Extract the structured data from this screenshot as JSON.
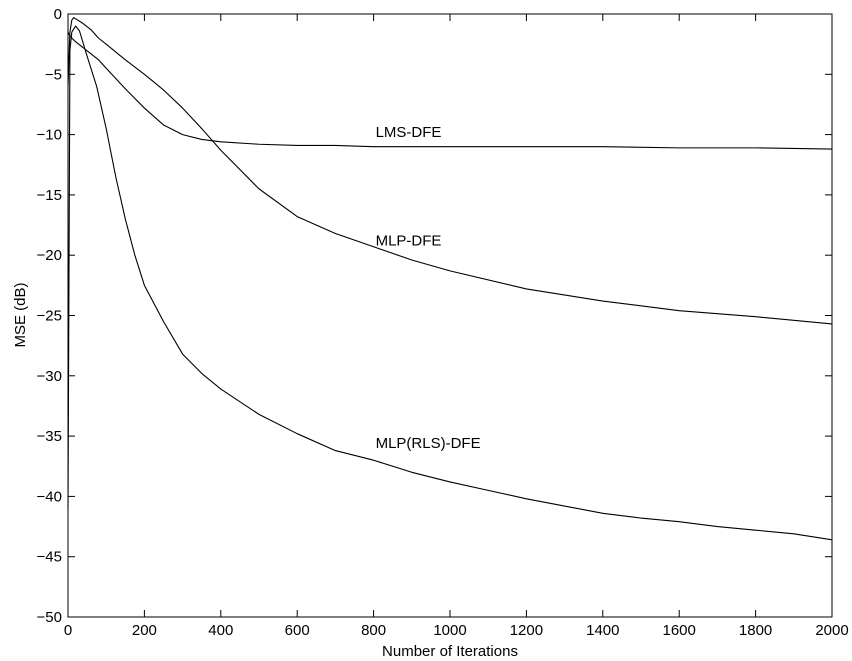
{
  "chart_data": {
    "type": "line",
    "title": "",
    "xlabel": "Number of Iterations",
    "ylabel": "MSE (dB)",
    "xlim": [
      0,
      2000
    ],
    "ylim": [
      -50,
      0
    ],
    "xticks": [
      0,
      200,
      400,
      600,
      800,
      1000,
      1200,
      1400,
      1600,
      1800,
      2000
    ],
    "yticks": [
      0,
      -5,
      -10,
      -15,
      -20,
      -25,
      -30,
      -35,
      -40,
      -45,
      -50
    ],
    "grid": false,
    "legend": "none",
    "line_color": "#000000",
    "series": [
      {
        "name": "LMS-DFE",
        "label_at": [
          800,
          -10.2
        ],
        "x": [
          0,
          5,
          10,
          20,
          40,
          60,
          80,
          100,
          150,
          200,
          250,
          300,
          350,
          400,
          500,
          600,
          700,
          800,
          1000,
          1200,
          1400,
          1600,
          1800,
          2000
        ],
        "y": [
          -1.5,
          -1.8,
          -2.0,
          -2.3,
          -2.8,
          -3.3,
          -3.8,
          -4.5,
          -6.2,
          -7.8,
          -9.2,
          -10.0,
          -10.4,
          -10.6,
          -10.8,
          -10.9,
          -10.9,
          -11.0,
          -11.0,
          -11.0,
          -11.0,
          -11.1,
          -11.1,
          -11.2
        ]
      },
      {
        "name": "MLP-DFE",
        "label_at": [
          800,
          -19.2
        ],
        "x": [
          0,
          5,
          10,
          15,
          20,
          40,
          60,
          80,
          100,
          150,
          200,
          250,
          300,
          350,
          400,
          500,
          600,
          700,
          800,
          900,
          1000,
          1200,
          1400,
          1600,
          1800,
          2000
        ],
        "y": [
          -6.0,
          -1.5,
          -0.5,
          -0.3,
          -0.4,
          -0.8,
          -1.3,
          -2.0,
          -2.5,
          -3.8,
          -5.0,
          -6.3,
          -7.8,
          -9.5,
          -11.3,
          -14.5,
          -16.8,
          -18.2,
          -19.3,
          -20.4,
          -21.3,
          -22.8,
          -23.8,
          -24.6,
          -25.1,
          -25.7
        ]
      },
      {
        "name": "MLP(RLS)-DFE",
        "label_at": [
          800,
          -36.0
        ],
        "x": [
          0,
          5,
          10,
          20,
          30,
          50,
          75,
          100,
          125,
          150,
          175,
          200,
          250,
          300,
          350,
          400,
          500,
          600,
          700,
          800,
          900,
          1000,
          1100,
          1200,
          1300,
          1400,
          1500,
          1600,
          1700,
          1800,
          1900,
          2000
        ],
        "y": [
          -41.0,
          -3.0,
          -1.5,
          -1.0,
          -1.4,
          -3.5,
          -6.0,
          -9.5,
          -13.5,
          -17.0,
          -20.0,
          -22.5,
          -25.5,
          -28.2,
          -29.8,
          -31.1,
          -33.2,
          -34.8,
          -36.2,
          -37.0,
          -38.0,
          -38.8,
          -39.5,
          -40.2,
          -40.8,
          -41.4,
          -41.8,
          -42.1,
          -42.5,
          -42.8,
          -43.1,
          -43.6
        ]
      }
    ]
  }
}
